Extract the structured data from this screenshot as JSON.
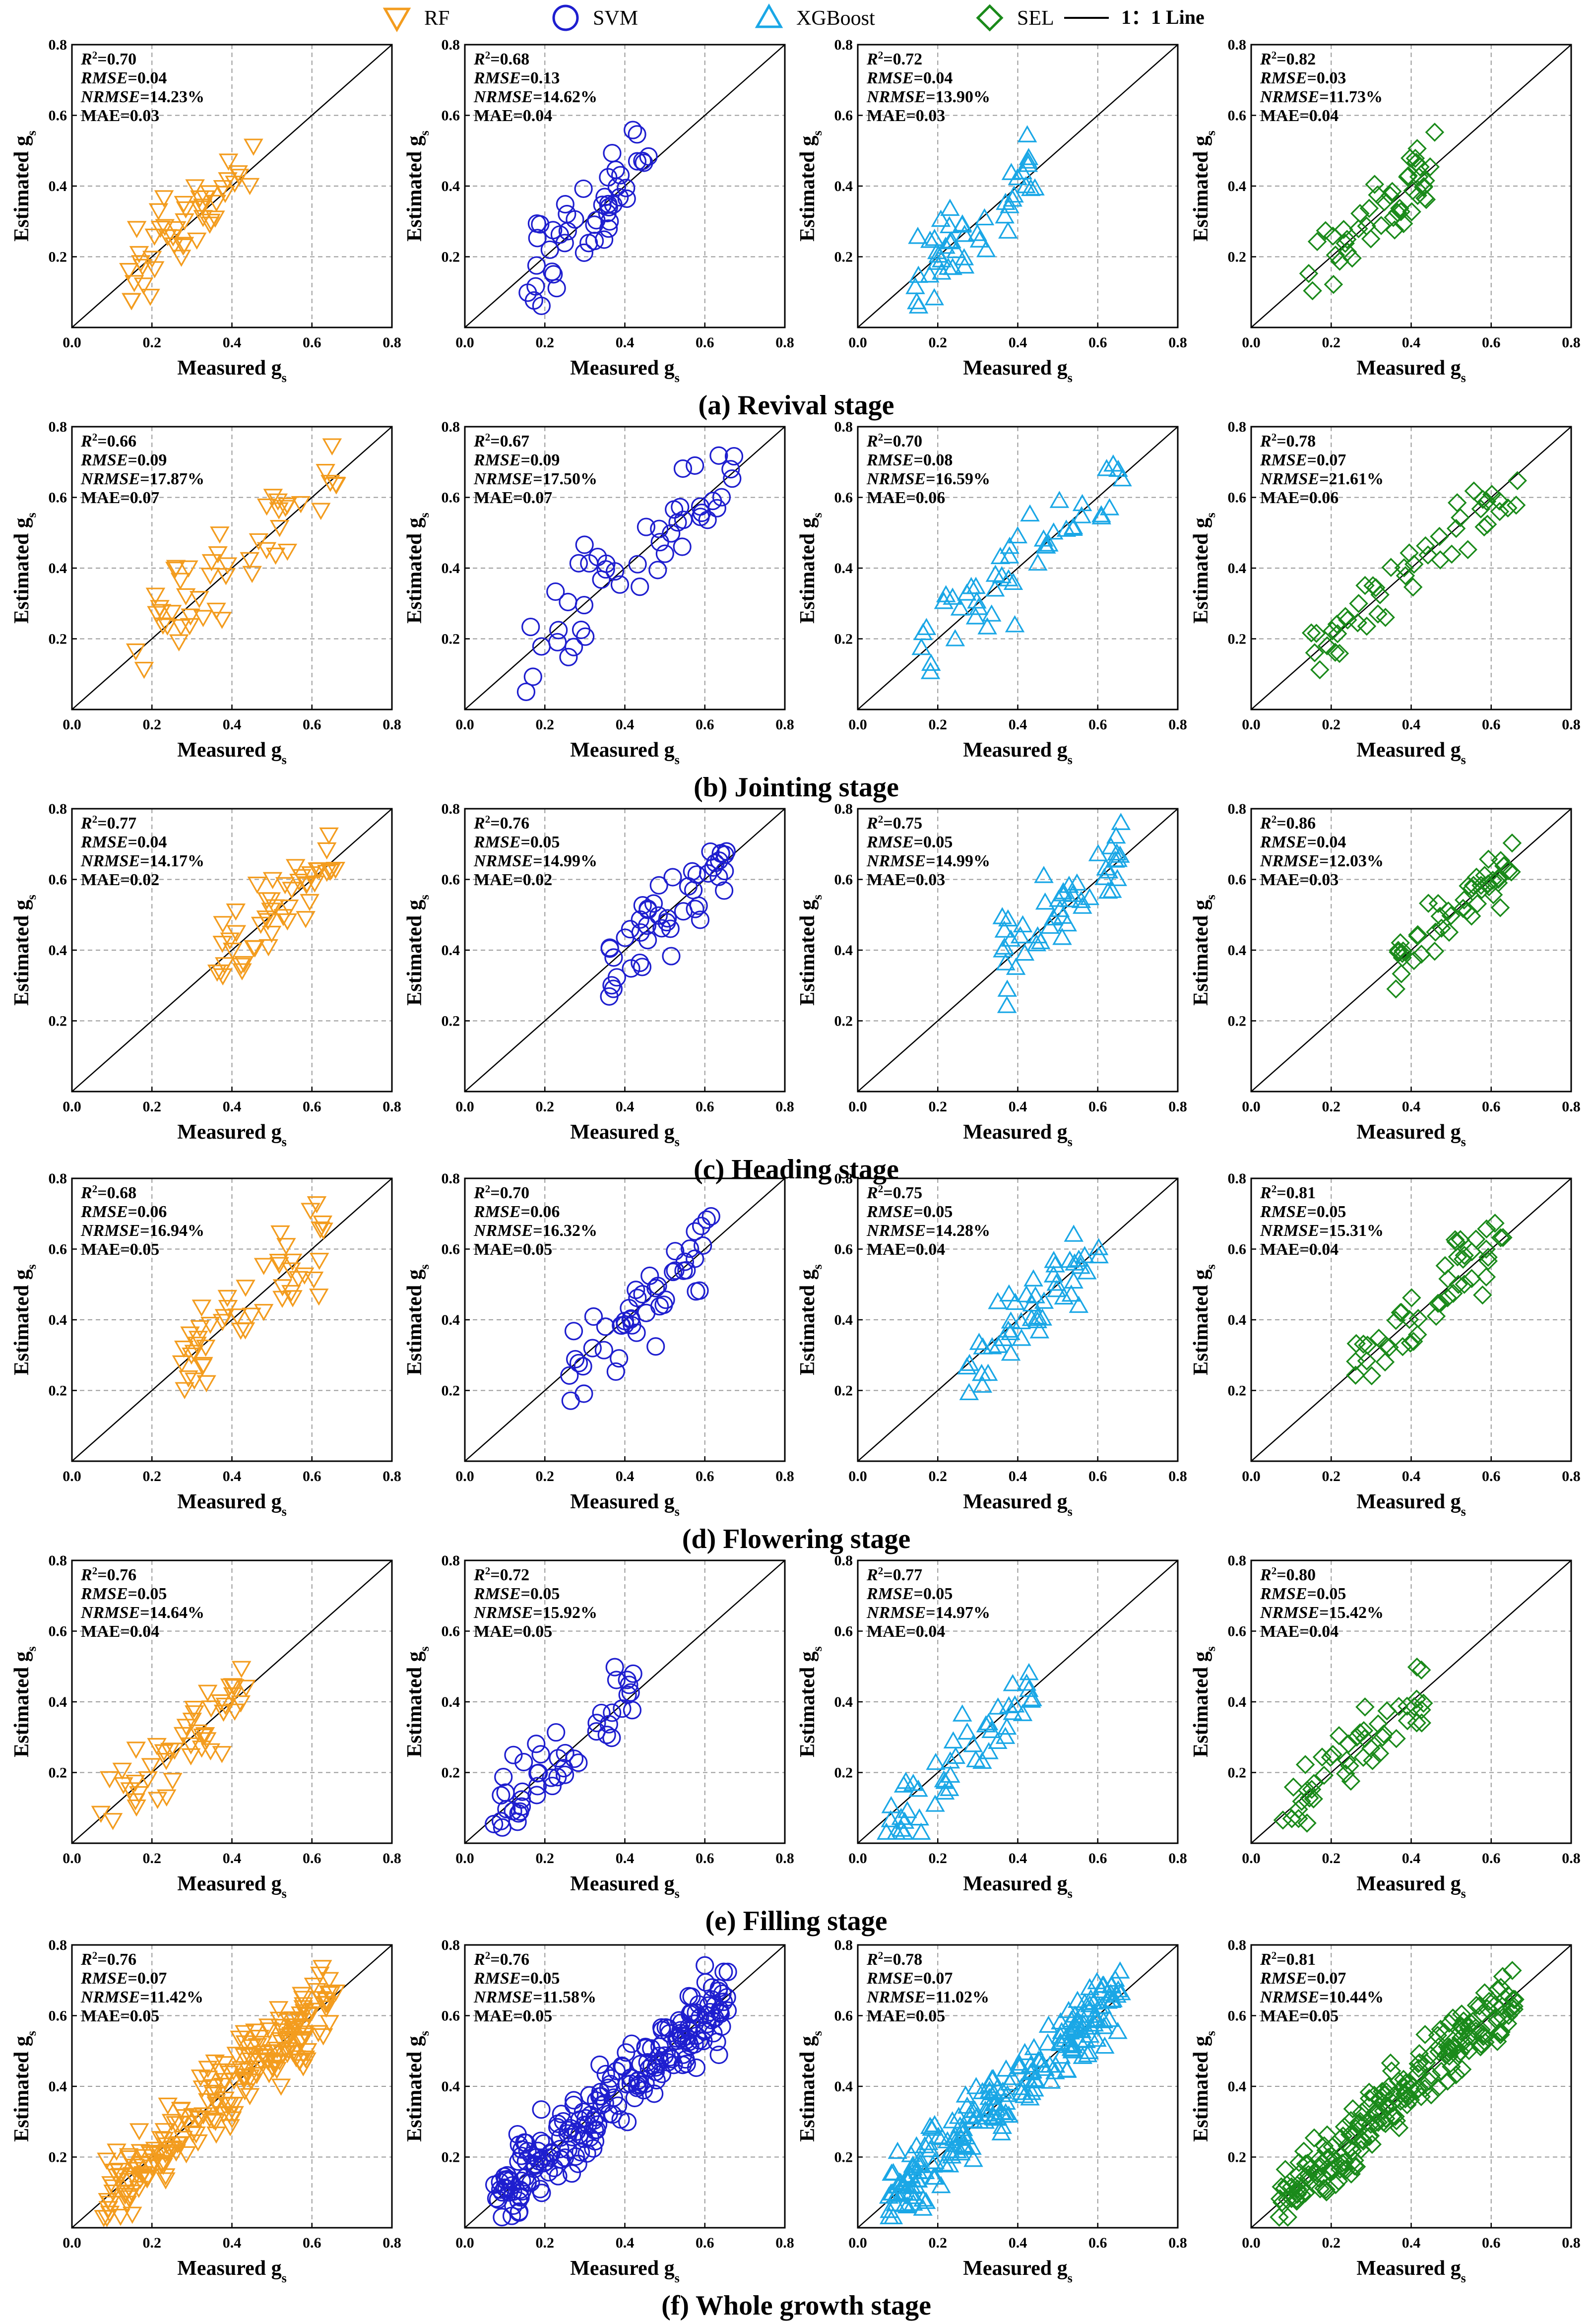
{
  "chart_data": {
    "type": "scatter",
    "legend": {
      "position": "top-center",
      "entries": [
        {
          "label": "RF",
          "marker": "triangle-down-icon",
          "color": "#F39C1E"
        },
        {
          "label": "SVM",
          "marker": "circle-icon",
          "color": "#1E1ECF"
        },
        {
          "label": "XGBoost",
          "marker": "triangle-up-icon",
          "color": "#1AA7E6"
        },
        {
          "label": "SEL",
          "marker": "diamond-icon",
          "color": "#1A8A1A"
        },
        {
          "label": "1：1 Line",
          "marker": "line-icon",
          "color": "#000000"
        }
      ]
    },
    "axes": {
      "xlabel_main": "Measured g",
      "ylabel_main": "Estimated g",
      "subscript": "s",
      "xlim": [
        0,
        0.8
      ],
      "ylim": [
        0,
        0.8
      ],
      "xticks": [
        "0.0",
        "0.2",
        "0.4",
        "0.6",
        "0.8"
      ],
      "yticks": [
        "0.2",
        "0.4",
        "0.6",
        "0.8"
      ],
      "grid": "dashed",
      "reference_line": "1:1"
    },
    "metric_labels": {
      "r2": "R",
      "r2_sup": "2",
      "rmse": "RMSE",
      "nrmse": "NRMSE",
      "mae": "MAE"
    },
    "stages": [
      {
        "title": "(a) Revival stage",
        "range": [
          0.14,
          0.46
        ],
        "models": [
          {
            "model": "RF",
            "r2": "0.70",
            "rmse": "0.04",
            "nrmse": "14.23%",
            "mae": "0.03"
          },
          {
            "model": "SVM",
            "r2": "0.68",
            "rmse": "0.13",
            "nrmse": "14.62%",
            "mae": "0.04"
          },
          {
            "model": "XGBoost",
            "r2": "0.72",
            "rmse": "0.04",
            "nrmse": "13.90%",
            "mae": "0.03"
          },
          {
            "model": "SEL",
            "r2": "0.82",
            "rmse": "0.03",
            "nrmse": "11.73%",
            "mae": "0.04"
          }
        ]
      },
      {
        "title": "(b) Jointing stage",
        "range": [
          0.15,
          0.68
        ],
        "models": [
          {
            "model": "RF",
            "r2": "0.66",
            "rmse": "0.09",
            "nrmse": "17.87%",
            "mae": "0.07"
          },
          {
            "model": "SVM",
            "r2": "0.67",
            "rmse": "0.09",
            "nrmse": "17.50%",
            "mae": "0.07"
          },
          {
            "model": "XGBoost",
            "r2": "0.70",
            "rmse": "0.08",
            "nrmse": "16.59%",
            "mae": "0.06"
          },
          {
            "model": "SEL",
            "r2": "0.78",
            "rmse": "0.07",
            "nrmse": "21.61%",
            "mae": "0.06"
          }
        ]
      },
      {
        "title": "(c) Heading stage",
        "range": [
          0.36,
          0.66
        ],
        "models": [
          {
            "model": "RF",
            "r2": "0.77",
            "rmse": "0.04",
            "nrmse": "14.17%",
            "mae": "0.02"
          },
          {
            "model": "SVM",
            "r2": "0.76",
            "rmse": "0.05",
            "nrmse": "14.99%",
            "mae": "0.02"
          },
          {
            "model": "XGBoost",
            "r2": "0.75",
            "rmse": "0.05",
            "nrmse": "14.99%",
            "mae": "0.03"
          },
          {
            "model": "SEL",
            "r2": "0.86",
            "rmse": "0.04",
            "nrmse": "12.03%",
            "mae": "0.03"
          }
        ]
      },
      {
        "title": "(d) Flowering stage",
        "range": [
          0.26,
          0.63
        ],
        "models": [
          {
            "model": "RF",
            "r2": "0.68",
            "rmse": "0.06",
            "nrmse": "16.94%",
            "mae": "0.05"
          },
          {
            "model": "SVM",
            "r2": "0.70",
            "rmse": "0.06",
            "nrmse": "16.32%",
            "mae": "0.05"
          },
          {
            "model": "XGBoost",
            "r2": "0.75",
            "rmse": "0.05",
            "nrmse": "14.28%",
            "mae": "0.04"
          },
          {
            "model": "SEL",
            "r2": "0.81",
            "rmse": "0.05",
            "nrmse": "15.31%",
            "mae": "0.04"
          }
        ]
      },
      {
        "title": "(e) Filling stage",
        "range": [
          0.07,
          0.44
        ],
        "models": [
          {
            "model": "RF",
            "r2": "0.76",
            "rmse": "0.05",
            "nrmse": "14.64%",
            "mae": "0.04"
          },
          {
            "model": "SVM",
            "r2": "0.72",
            "rmse": "0.05",
            "nrmse": "15.92%",
            "mae": "0.05"
          },
          {
            "model": "XGBoost",
            "r2": "0.77",
            "rmse": "0.05",
            "nrmse": "14.97%",
            "mae": "0.04"
          },
          {
            "model": "SEL",
            "r2": "0.80",
            "rmse": "0.05",
            "nrmse": "15.42%",
            "mae": "0.04"
          }
        ]
      },
      {
        "title": "(f) Whole growth stage",
        "range": [
          0.07,
          0.66
        ],
        "models": [
          {
            "model": "RF",
            "r2": "0.76",
            "rmse": "0.07",
            "nrmse": "11.42%",
            "mae": "0.05"
          },
          {
            "model": "SVM",
            "r2": "0.76",
            "rmse": "0.05",
            "nrmse": "11.58%",
            "mae": "0.05"
          },
          {
            "model": "XGBoost",
            "r2": "0.78",
            "rmse": "0.07",
            "nrmse": "11.02%",
            "mae": "0.05"
          },
          {
            "model": "SEL",
            "r2": "0.81",
            "rmse": "0.07",
            "nrmse": "10.44%",
            "mae": "0.05"
          }
        ]
      }
    ]
  }
}
